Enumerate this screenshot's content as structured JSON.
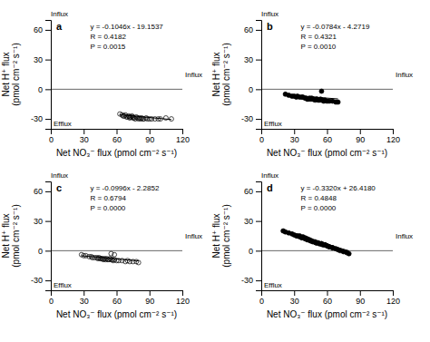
{
  "chart_data": [
    {
      "type": "scatter",
      "title": "a",
      "xlabel": "Net NO₃⁻ flux (pmol cm⁻² s⁻¹)",
      "ylabel": "Net H⁺ flux\n(pmol cm⁻² s⁻¹)",
      "xlim": [
        0,
        120
      ],
      "ylim": [
        -40,
        70
      ],
      "xticks": [
        0,
        30,
        60,
        90,
        120
      ],
      "yticks": [
        -30,
        0,
        30,
        60
      ],
      "hline": 0,
      "annotations": [
        "y = -0.1046x - 19.1537",
        "R = 0.4182",
        "P = 0.0015"
      ],
      "influx_label": "Influx",
      "efflux_label": "Efflux",
      "axis_end_label": "Influx",
      "series": [
        {
          "type": "scatter",
          "marker": "circle-open",
          "color": "#000000",
          "x": [
            63,
            65,
            66,
            67,
            68,
            69,
            70,
            71,
            72,
            72,
            73,
            74,
            75,
            75,
            76,
            77,
            78,
            79,
            80,
            81,
            82,
            83,
            84,
            85,
            87,
            88,
            90,
            92,
            95,
            98,
            100,
            105,
            110
          ],
          "values": [
            -25,
            -26,
            -27,
            -27,
            -26,
            -28,
            -28,
            -27,
            -28,
            -29,
            -28,
            -27,
            -28,
            -29,
            -29,
            -30,
            -28,
            -29,
            -30,
            -29,
            -30,
            -29,
            -30,
            -30,
            -29,
            -30,
            -30,
            -30,
            -30,
            -30,
            -30,
            -29,
            -30
          ]
        },
        {
          "type": "line",
          "color": "#000000",
          "x": [
            63,
            110
          ],
          "values": [
            -25.7435,
            -30.6597
          ]
        }
      ]
    },
    {
      "type": "scatter",
      "title": "b",
      "xlabel": "Net NO₃⁻ flux (pmol cm⁻² s⁻¹)",
      "ylabel": "Net H⁺ flux\n(pmol cm⁻² s⁻¹)",
      "xlim": [
        0,
        120
      ],
      "ylim": [
        -40,
        70
      ],
      "xticks": [
        0,
        30,
        60,
        90,
        120
      ],
      "yticks": [
        -30,
        0,
        30,
        60
      ],
      "hline": 0,
      "annotations": [
        "y = -0.0784x - 4.2719",
        "R = 0.4321",
        "P = 0.0010"
      ],
      "influx_label": "Influx",
      "efflux_label": "Efflux",
      "axis_end_label": "Influx",
      "series": [
        {
          "type": "scatter",
          "marker": "circle",
          "color": "#000000",
          "x": [
            22,
            25,
            28,
            30,
            32,
            33,
            35,
            37,
            38,
            40,
            41,
            42,
            43,
            44,
            45,
            46,
            47,
            48,
            49,
            50,
            51,
            52,
            53,
            54,
            55,
            56,
            57,
            58,
            60,
            62,
            65,
            68,
            70,
            55
          ],
          "values": [
            -5,
            -6,
            -7,
            -7,
            -8,
            -7,
            -8,
            -8,
            -8,
            -9,
            -9,
            -10,
            -10,
            -9,
            -10,
            -9,
            -10,
            -10,
            -11,
            -10,
            -10,
            -11,
            -11,
            -10,
            -11,
            -11,
            -12,
            -11,
            -12,
            -12,
            -12,
            -13,
            -13,
            -2
          ]
        },
        {
          "type": "line",
          "color": "#000000",
          "x": [
            22,
            70
          ],
          "values": [
            -5.9967,
            -9.7599
          ]
        }
      ]
    },
    {
      "type": "scatter",
      "title": "c",
      "xlabel": "Net NO₃⁻ flux (pmol cm⁻² s⁻¹)",
      "ylabel": "Net H⁺ flux\n(pmol cm⁻² s⁻¹)",
      "xlim": [
        0,
        120
      ],
      "ylim": [
        -40,
        70
      ],
      "xticks": [
        0,
        30,
        60,
        90,
        120
      ],
      "yticks": [
        -30,
        0,
        30,
        60
      ],
      "hline": 0,
      "annotations": [
        "y = -0.0996x - 2.2852",
        "R = 0.6794",
        "P = 0.0000"
      ],
      "influx_label": "Influx",
      "efflux_label": "Efflux",
      "axis_end_label": "Influx",
      "series": [
        {
          "type": "scatter",
          "marker": "circle-open",
          "color": "#000000",
          "x": [
            28,
            30,
            32,
            35,
            37,
            38,
            40,
            42,
            43,
            44,
            45,
            46,
            47,
            48,
            49,
            50,
            51,
            52,
            53,
            54,
            55,
            56,
            57,
            58,
            60,
            62,
            65,
            68,
            70,
            72,
            75,
            78,
            80,
            55,
            58
          ],
          "values": [
            -4,
            -5,
            -5,
            -6,
            -6,
            -7,
            -7,
            -7,
            -8,
            -7,
            -8,
            -8,
            -8,
            -9,
            -8,
            -9,
            -8,
            -9,
            -9,
            -8,
            -9,
            -9,
            -10,
            -9,
            -10,
            -10,
            -10,
            -11,
            -10,
            -11,
            -11,
            -11,
            -12,
            -3,
            -4
          ]
        },
        {
          "type": "line",
          "color": "#000000",
          "x": [
            28,
            80
          ],
          "values": [
            -5.074,
            -10.2532
          ]
        }
      ]
    },
    {
      "type": "scatter",
      "title": "d",
      "xlabel": "Net NO₃⁻ flux (pmol cm⁻² s⁻¹)",
      "ylabel": "Net H⁺ flux\n(pmol cm⁻² s⁻¹)",
      "xlim": [
        0,
        120
      ],
      "ylim": [
        -40,
        70
      ],
      "xticks": [
        0,
        30,
        60,
        90,
        120
      ],
      "yticks": [
        -30,
        0,
        30,
        60
      ],
      "hline": 0,
      "annotations": [
        "y = -0.3320x + 26.4180",
        "R = 0.4848",
        "P = 0.0000"
      ],
      "influx_label": "Influx",
      "efflux_label": "Efflux",
      "axis_end_label": "Influx",
      "series": [
        {
          "type": "scatter",
          "marker": "circle",
          "color": "#000000",
          "x": [
            20,
            22,
            25,
            28,
            30,
            32,
            33,
            35,
            37,
            38,
            40,
            41,
            42,
            43,
            44,
            45,
            46,
            47,
            48,
            49,
            50,
            51,
            52,
            53,
            54,
            55,
            56,
            57,
            58,
            60,
            62,
            65,
            68,
            70,
            72,
            75,
            78,
            80,
            55,
            58,
            62,
            65,
            40,
            45,
            50,
            55,
            60,
            35,
            42
          ],
          "values": [
            20,
            19,
            18,
            17,
            16,
            15,
            15,
            14,
            13,
            14,
            12,
            12,
            11,
            11,
            11,
            10,
            10,
            9,
            9,
            9,
            8,
            8,
            8,
            7,
            7,
            7,
            6,
            6,
            6,
            5,
            4,
            3,
            2,
            1,
            0,
            -1,
            -2,
            -3,
            7,
            6,
            4,
            3,
            13,
            10,
            8,
            7,
            5,
            15,
            12
          ]
        },
        {
          "type": "line",
          "color": "#000000",
          "x": [
            20,
            80
          ],
          "values": [
            19.778,
            -0.142
          ]
        }
      ]
    }
  ]
}
